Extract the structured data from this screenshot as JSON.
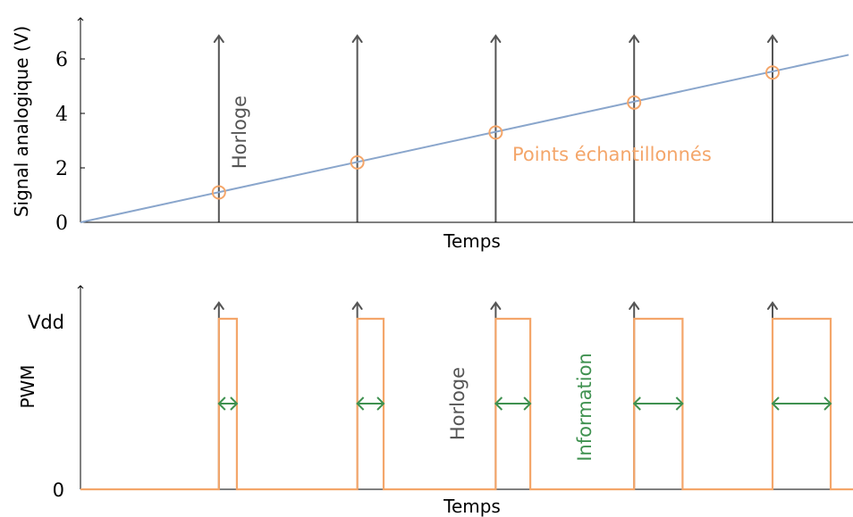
{
  "colors": {
    "axis": "#000000",
    "clock": "#555555",
    "signal": "#8aa6cc",
    "samples": "#f4a66a",
    "pwm": "#f4a66a",
    "info": "#3f9150",
    "background": "#ffffff"
  },
  "chart_data": [
    {
      "type": "line",
      "xlabel": "Temps",
      "ylabel": "Signal analogique (V)",
      "ylim": [
        0,
        7.2
      ],
      "yticks": [
        "0",
        "2",
        "4",
        "6"
      ],
      "grid": false,
      "series": [
        {
          "kind": "signal",
          "x": [
            0,
            5.55
          ],
          "y": [
            0,
            6.15
          ]
        }
      ],
      "clock_label": "Horloge",
      "clock_x": [
        1,
        2,
        3,
        4,
        5
      ],
      "samples_label": "Points échantillonnés",
      "samples": {
        "x": [
          1,
          2,
          3,
          4,
          5
        ],
        "y": [
          1.1,
          2.2,
          3.3,
          4.4,
          5.5
        ]
      }
    },
    {
      "type": "line",
      "xlabel": "Temps",
      "ylabel": "PWM",
      "yticks": [
        "0",
        "Vdd"
      ],
      "grid": false,
      "clock_label": "Horloge",
      "clock_x": [
        1,
        2,
        3,
        4,
        5
      ],
      "info_label": "Information",
      "pulses": [
        {
          "start": 1,
          "width": 0.13
        },
        {
          "start": 2,
          "width": 0.19
        },
        {
          "start": 3,
          "width": 0.25
        },
        {
          "start": 4,
          "width": 0.35
        },
        {
          "start": 5,
          "width": 0.42
        }
      ]
    }
  ]
}
